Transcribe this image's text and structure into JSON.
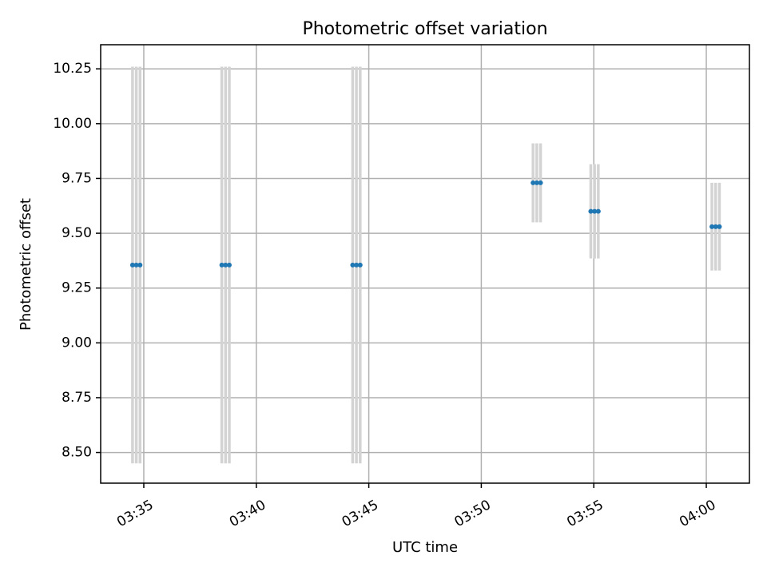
{
  "chart_data": {
    "type": "scatter",
    "title": "Photometric offset variation",
    "xlabel": "UTC time",
    "ylabel": "Photometric offset",
    "x_ticks": [
      "03:35",
      "03:40",
      "03:45",
      "03:50",
      "03:55",
      "04:00"
    ],
    "y_ticks": [
      "8.50",
      "8.75",
      "9.00",
      "9.25",
      "9.50",
      "9.75",
      "10.00",
      "10.25"
    ],
    "xlim": [
      "03:33:05",
      "04:01:55"
    ],
    "ylim": [
      8.36,
      10.36
    ],
    "grid": true,
    "error_bar_color": "#d3d3d3",
    "point_color": "#1f77b4",
    "points": [
      {
        "x": "03:34:30",
        "y": 9.355,
        "err": 0.905
      },
      {
        "x": "03:34:40",
        "y": 9.355,
        "err": 0.905
      },
      {
        "x": "03:34:50",
        "y": 9.355,
        "err": 0.905
      },
      {
        "x": "03:38:28",
        "y": 9.355,
        "err": 0.905
      },
      {
        "x": "03:38:38",
        "y": 9.355,
        "err": 0.905
      },
      {
        "x": "03:38:48",
        "y": 9.355,
        "err": 0.905
      },
      {
        "x": "03:44:17",
        "y": 9.355,
        "err": 0.905
      },
      {
        "x": "03:44:27",
        "y": 9.355,
        "err": 0.905
      },
      {
        "x": "03:44:37",
        "y": 9.355,
        "err": 0.905
      },
      {
        "x": "03:52:18",
        "y": 9.73,
        "err": 0.18
      },
      {
        "x": "03:52:28",
        "y": 9.73,
        "err": 0.18
      },
      {
        "x": "03:52:38",
        "y": 9.73,
        "err": 0.18
      },
      {
        "x": "03:54:52",
        "y": 9.6,
        "err": 0.215
      },
      {
        "x": "03:55:02",
        "y": 9.6,
        "err": 0.215
      },
      {
        "x": "03:55:12",
        "y": 9.6,
        "err": 0.215
      },
      {
        "x": "04:00:15",
        "y": 9.53,
        "err": 0.2
      },
      {
        "x": "04:00:25",
        "y": 9.53,
        "err": 0.2
      },
      {
        "x": "04:00:35",
        "y": 9.53,
        "err": 0.2
      }
    ]
  }
}
